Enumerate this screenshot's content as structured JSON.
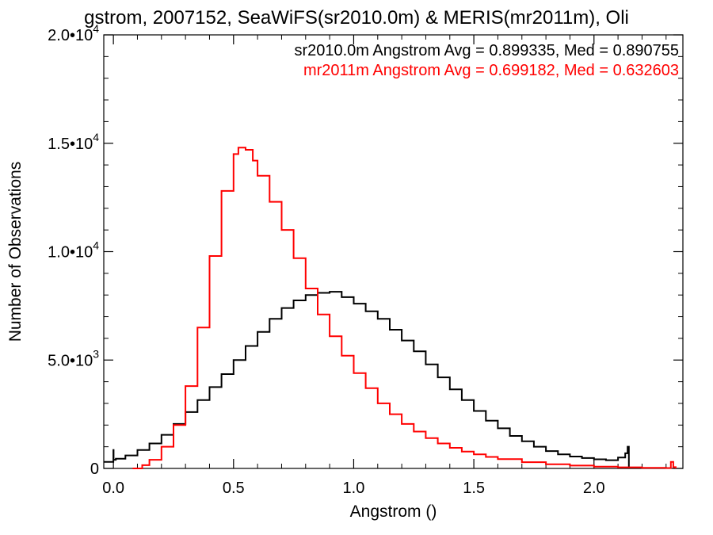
{
  "chart_data": {
    "type": "line",
    "title": "gstrom, 2007152, SeaWiFS(sr2010.0m) & MERIS(mr2011m), Oli",
    "xlabel": "Angstrom ()",
    "ylabel": "Number of Observations",
    "xlim": [
      -0.04,
      2.37
    ],
    "ylim": [
      0,
      20000
    ],
    "x_ticks": [
      0.0,
      0.5,
      1.0,
      1.5,
      2.0
    ],
    "x_tick_labels": [
      "0.0",
      "0.5",
      "1.0",
      "1.5",
      "2.0"
    ],
    "y_ticks": [
      0,
      5000,
      10000,
      15000,
      20000
    ],
    "y_tick_labels": [
      {
        "mant": "0",
        "exp": ""
      },
      {
        "mant": "5.0•10",
        "exp": "3"
      },
      {
        "mant": "1.0•10",
        "exp": "4"
      },
      {
        "mant": "1.5•10",
        "exp": "4"
      },
      {
        "mant": "2.0•10",
        "exp": "4"
      }
    ],
    "annotations": [
      {
        "text": "sr2010.0m Angstrom Avg = 0.899335, Med = 0.890755",
        "color": "#000000"
      },
      {
        "text": "mr2011m Angstrom Avg = 0.699182, Med = 0.632603",
        "color": "#ff0000"
      }
    ],
    "series": [
      {
        "color": "#000000",
        "x": [
          -0.04,
          0.0,
          0.001,
          0.01,
          0.05,
          0.1,
          0.15,
          0.2,
          0.25,
          0.3,
          0.35,
          0.4,
          0.45,
          0.5,
          0.55,
          0.6,
          0.65,
          0.7,
          0.75,
          0.8,
          0.85,
          0.9,
          0.95,
          1.0,
          1.05,
          1.1,
          1.15,
          1.2,
          1.25,
          1.3,
          1.35,
          1.4,
          1.45,
          1.5,
          1.55,
          1.6,
          1.65,
          1.7,
          1.75,
          1.8,
          1.85,
          1.9,
          1.95,
          2.0,
          2.05,
          2.1,
          2.13,
          2.14,
          2.145
        ],
        "y": [
          300,
          850,
          400,
          450,
          600,
          850,
          1150,
          1550,
          2050,
          2600,
          3150,
          3750,
          4350,
          5000,
          5650,
          6300,
          6900,
          7400,
          7750,
          8000,
          8100,
          8150,
          7900,
          7600,
          7250,
          6900,
          6400,
          5900,
          5400,
          4800,
          4200,
          3650,
          3150,
          2650,
          2200,
          1850,
          1500,
          1250,
          1000,
          800,
          650,
          550,
          480,
          420,
          380,
          500,
          700,
          1000,
          0
        ]
      },
      {
        "color": "#ff0000",
        "x": [
          0.08,
          0.12,
          0.15,
          0.2,
          0.25,
          0.3,
          0.35,
          0.4,
          0.45,
          0.5,
          0.52,
          0.55,
          0.58,
          0.6,
          0.65,
          0.7,
          0.75,
          0.8,
          0.85,
          0.9,
          0.95,
          1.0,
          1.05,
          1.1,
          1.15,
          1.2,
          1.25,
          1.3,
          1.35,
          1.4,
          1.45,
          1.5,
          1.55,
          1.6,
          1.7,
          1.8,
          1.9,
          2.0,
          2.1,
          2.2,
          2.3,
          2.32,
          2.33,
          2.34
        ],
        "y": [
          0,
          150,
          400,
          1000,
          2000,
          3800,
          6500,
          9800,
          12800,
          14500,
          14800,
          14700,
          14200,
          13500,
          12300,
          11000,
          9700,
          8300,
          7100,
          6100,
          5200,
          4400,
          3700,
          3000,
          2500,
          2050,
          1700,
          1400,
          1150,
          950,
          780,
          650,
          530,
          430,
          290,
          190,
          130,
          80,
          50,
          30,
          20,
          300,
          60,
          0
        ]
      }
    ]
  }
}
